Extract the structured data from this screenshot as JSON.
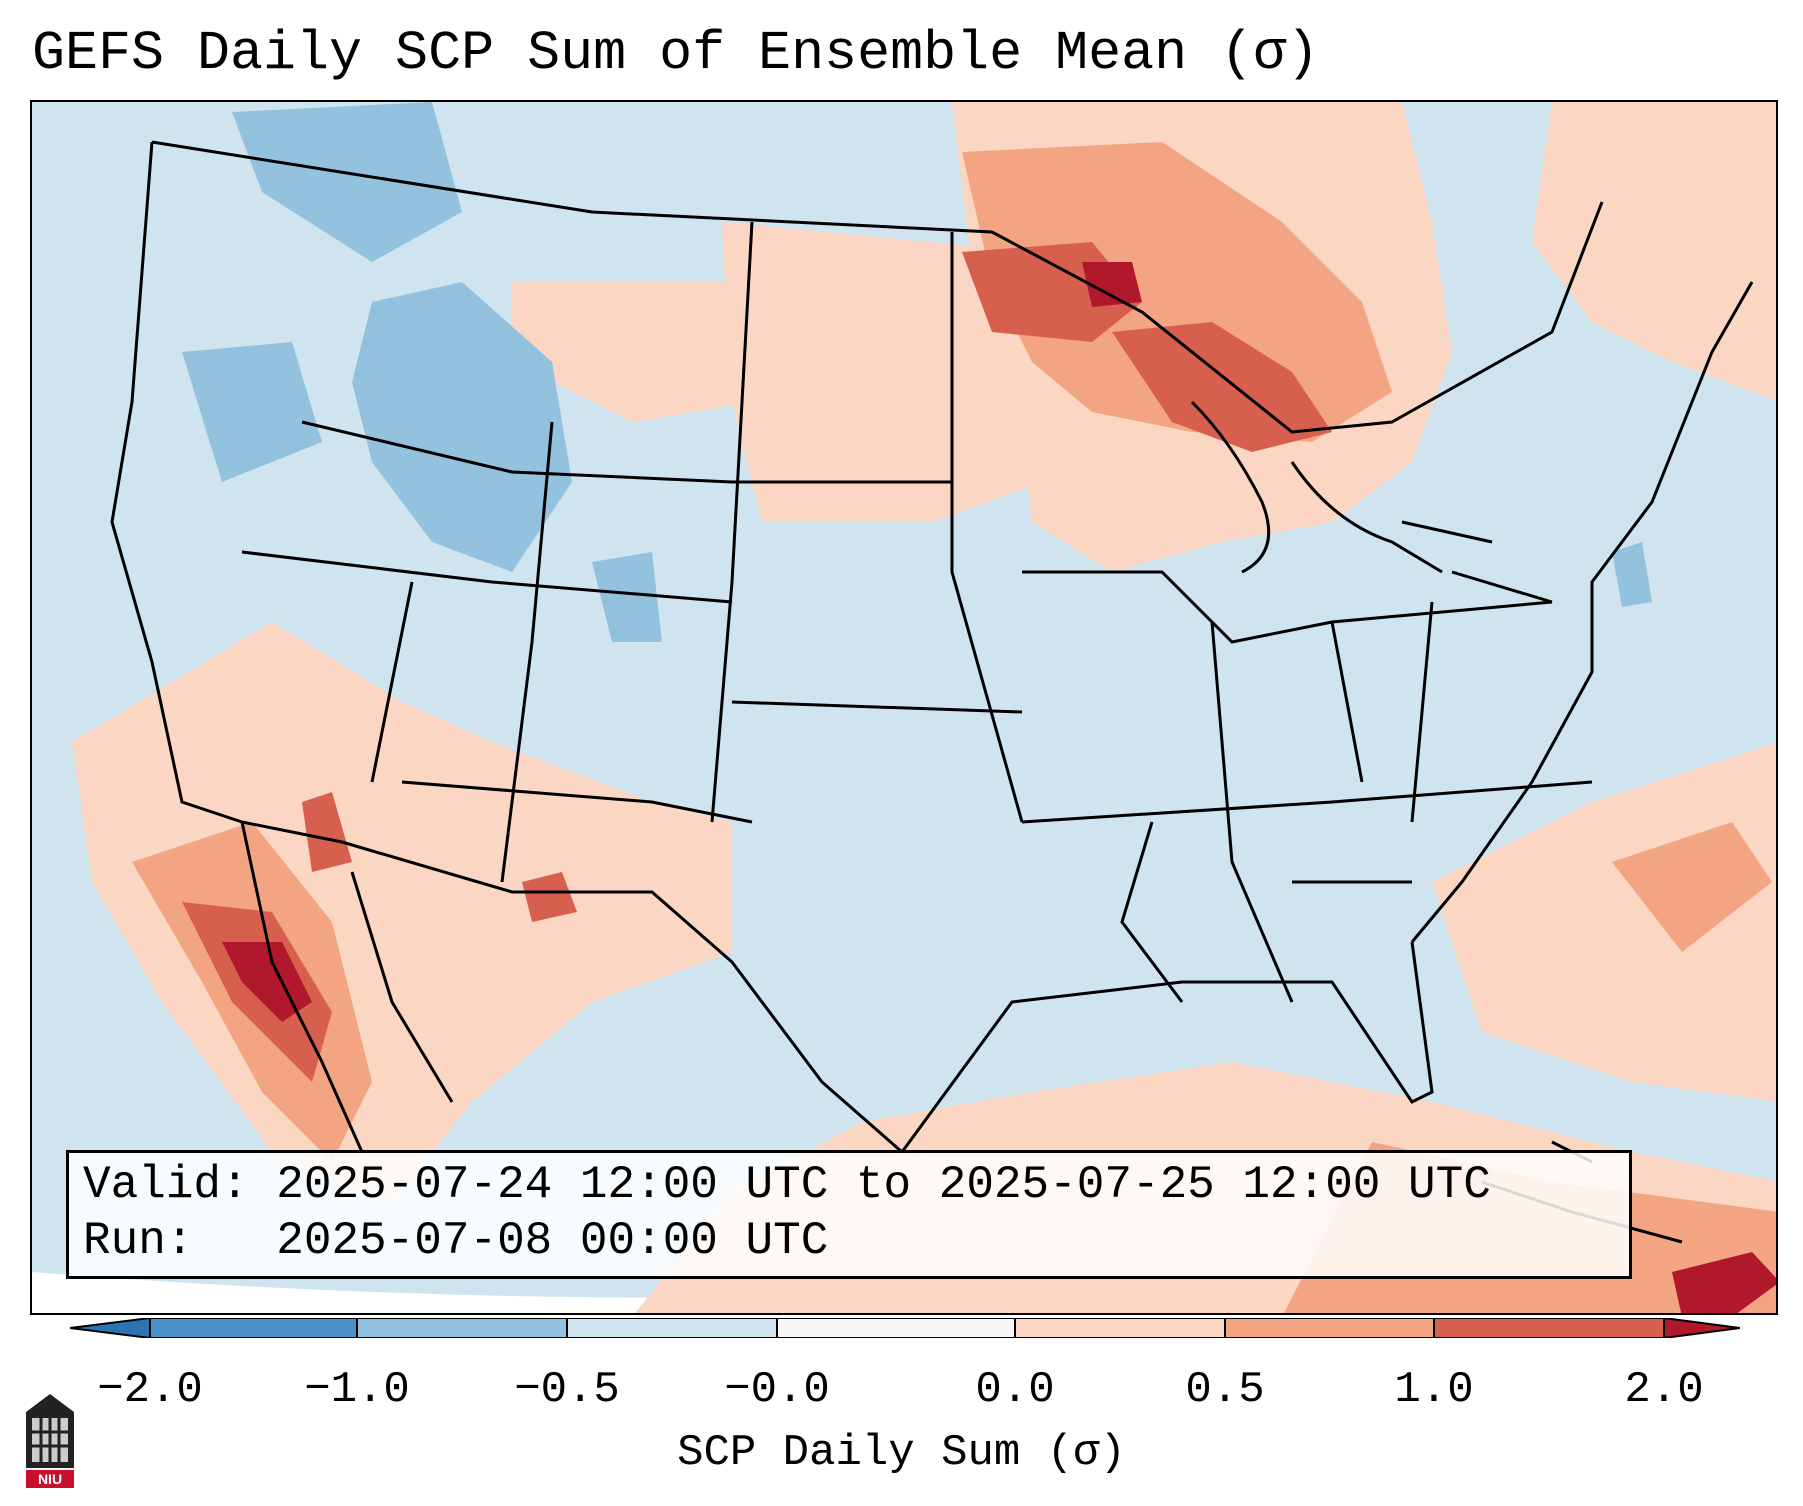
{
  "title": "GEFS Daily SCP Sum of Ensemble Mean (σ)",
  "info": {
    "valid_line": "Valid: 2025-07-24 12:00 UTC to 2025-07-25 12:00 UTC",
    "run_line": "Run:   2025-07-08 00:00 UTC"
  },
  "colorbar": {
    "label": "SCP Daily Sum (σ)",
    "ticks": [
      "−2.0",
      "−1.0",
      "−0.5",
      "−0.0",
      "0.0",
      "0.5",
      "1.0",
      "2.0"
    ],
    "bins": [
      {
        "range": "< -2.0",
        "color": "#2d74b4"
      },
      {
        "range": "-2.0 to -1.0",
        "color": "#4a92c6"
      },
      {
        "range": "-1.0 to -0.5",
        "color": "#92c2de"
      },
      {
        "range": "-0.5 to -0.0",
        "color": "#d0e4f0"
      },
      {
        "range": "-0.0 to 0.0",
        "color": "#f6f6f6"
      },
      {
        "range": "0.0 to 0.5",
        "color": "#fbd7c3"
      },
      {
        "range": "0.5 to 1.0",
        "color": "#f3a583"
      },
      {
        "range": "1.0 to 2.0",
        "color": "#d6604d"
      },
      {
        "range": "> 2.0",
        "color": "#b2182b"
      }
    ]
  },
  "map": {
    "region": "Contiguous United States",
    "background_color": "#d0e4f0",
    "anomaly_areas": [
      {
        "name": "upper-midwest-great-lakes",
        "level": "1.0 to 2.0"
      },
      {
        "name": "gulf-of-california",
        "level": "> 2.0"
      },
      {
        "name": "new-mexico",
        "level": "1.0 to 2.0"
      },
      {
        "name": "northern-rockies",
        "level": "-1.0 to -0.5"
      }
    ]
  },
  "logo": {
    "text": "NIU"
  }
}
